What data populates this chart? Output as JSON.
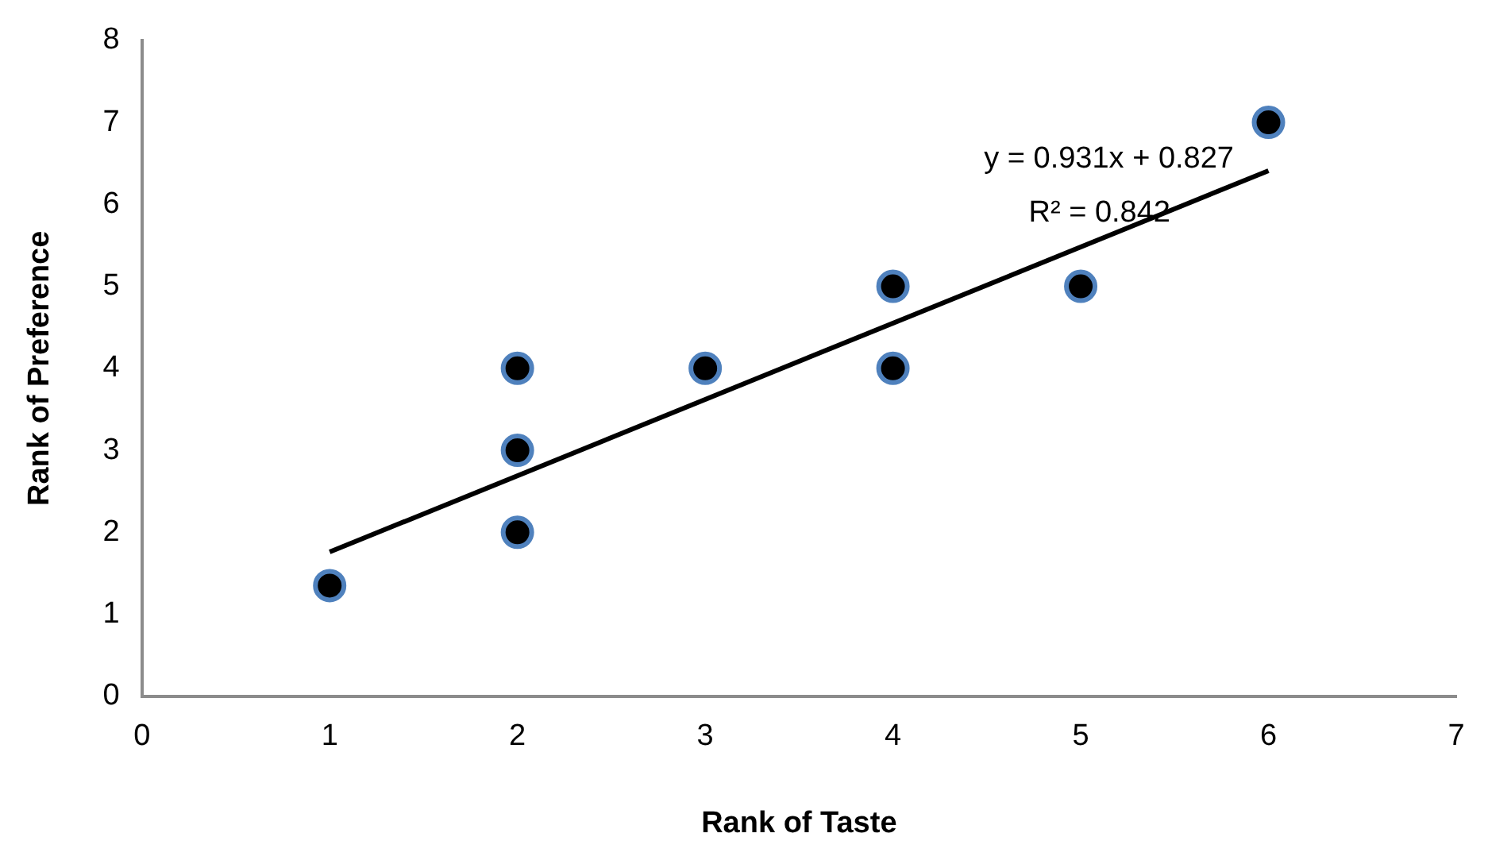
{
  "chart_data": {
    "type": "scatter",
    "xlabel": "Rank of Taste",
    "ylabel": "Rank of Preference",
    "xlim": [
      0,
      7
    ],
    "xticks": [
      0,
      1,
      2,
      3,
      4,
      5,
      6,
      7
    ],
    "ylim": [
      0,
      8
    ],
    "yticks": [
      0,
      1,
      2,
      3,
      4,
      5,
      6,
      7,
      8
    ],
    "grid": false,
    "legend": false,
    "marker": "circle",
    "series": [
      {
        "color": "#000000",
        "x": [
          1,
          2,
          2,
          2,
          3,
          4,
          4,
          5,
          6
        ],
        "values": [
          1.35,
          4,
          3,
          2,
          4,
          5,
          4,
          5,
          7
        ]
      },
      {
        "type": "line",
        "color": "#000000",
        "marker": "none",
        "x": [
          1,
          6
        ],
        "values": [
          1.76,
          6.41
        ]
      }
    ],
    "annotations": [
      "y = 0.931x + 0.827",
      "R² = 0.842"
    ]
  }
}
